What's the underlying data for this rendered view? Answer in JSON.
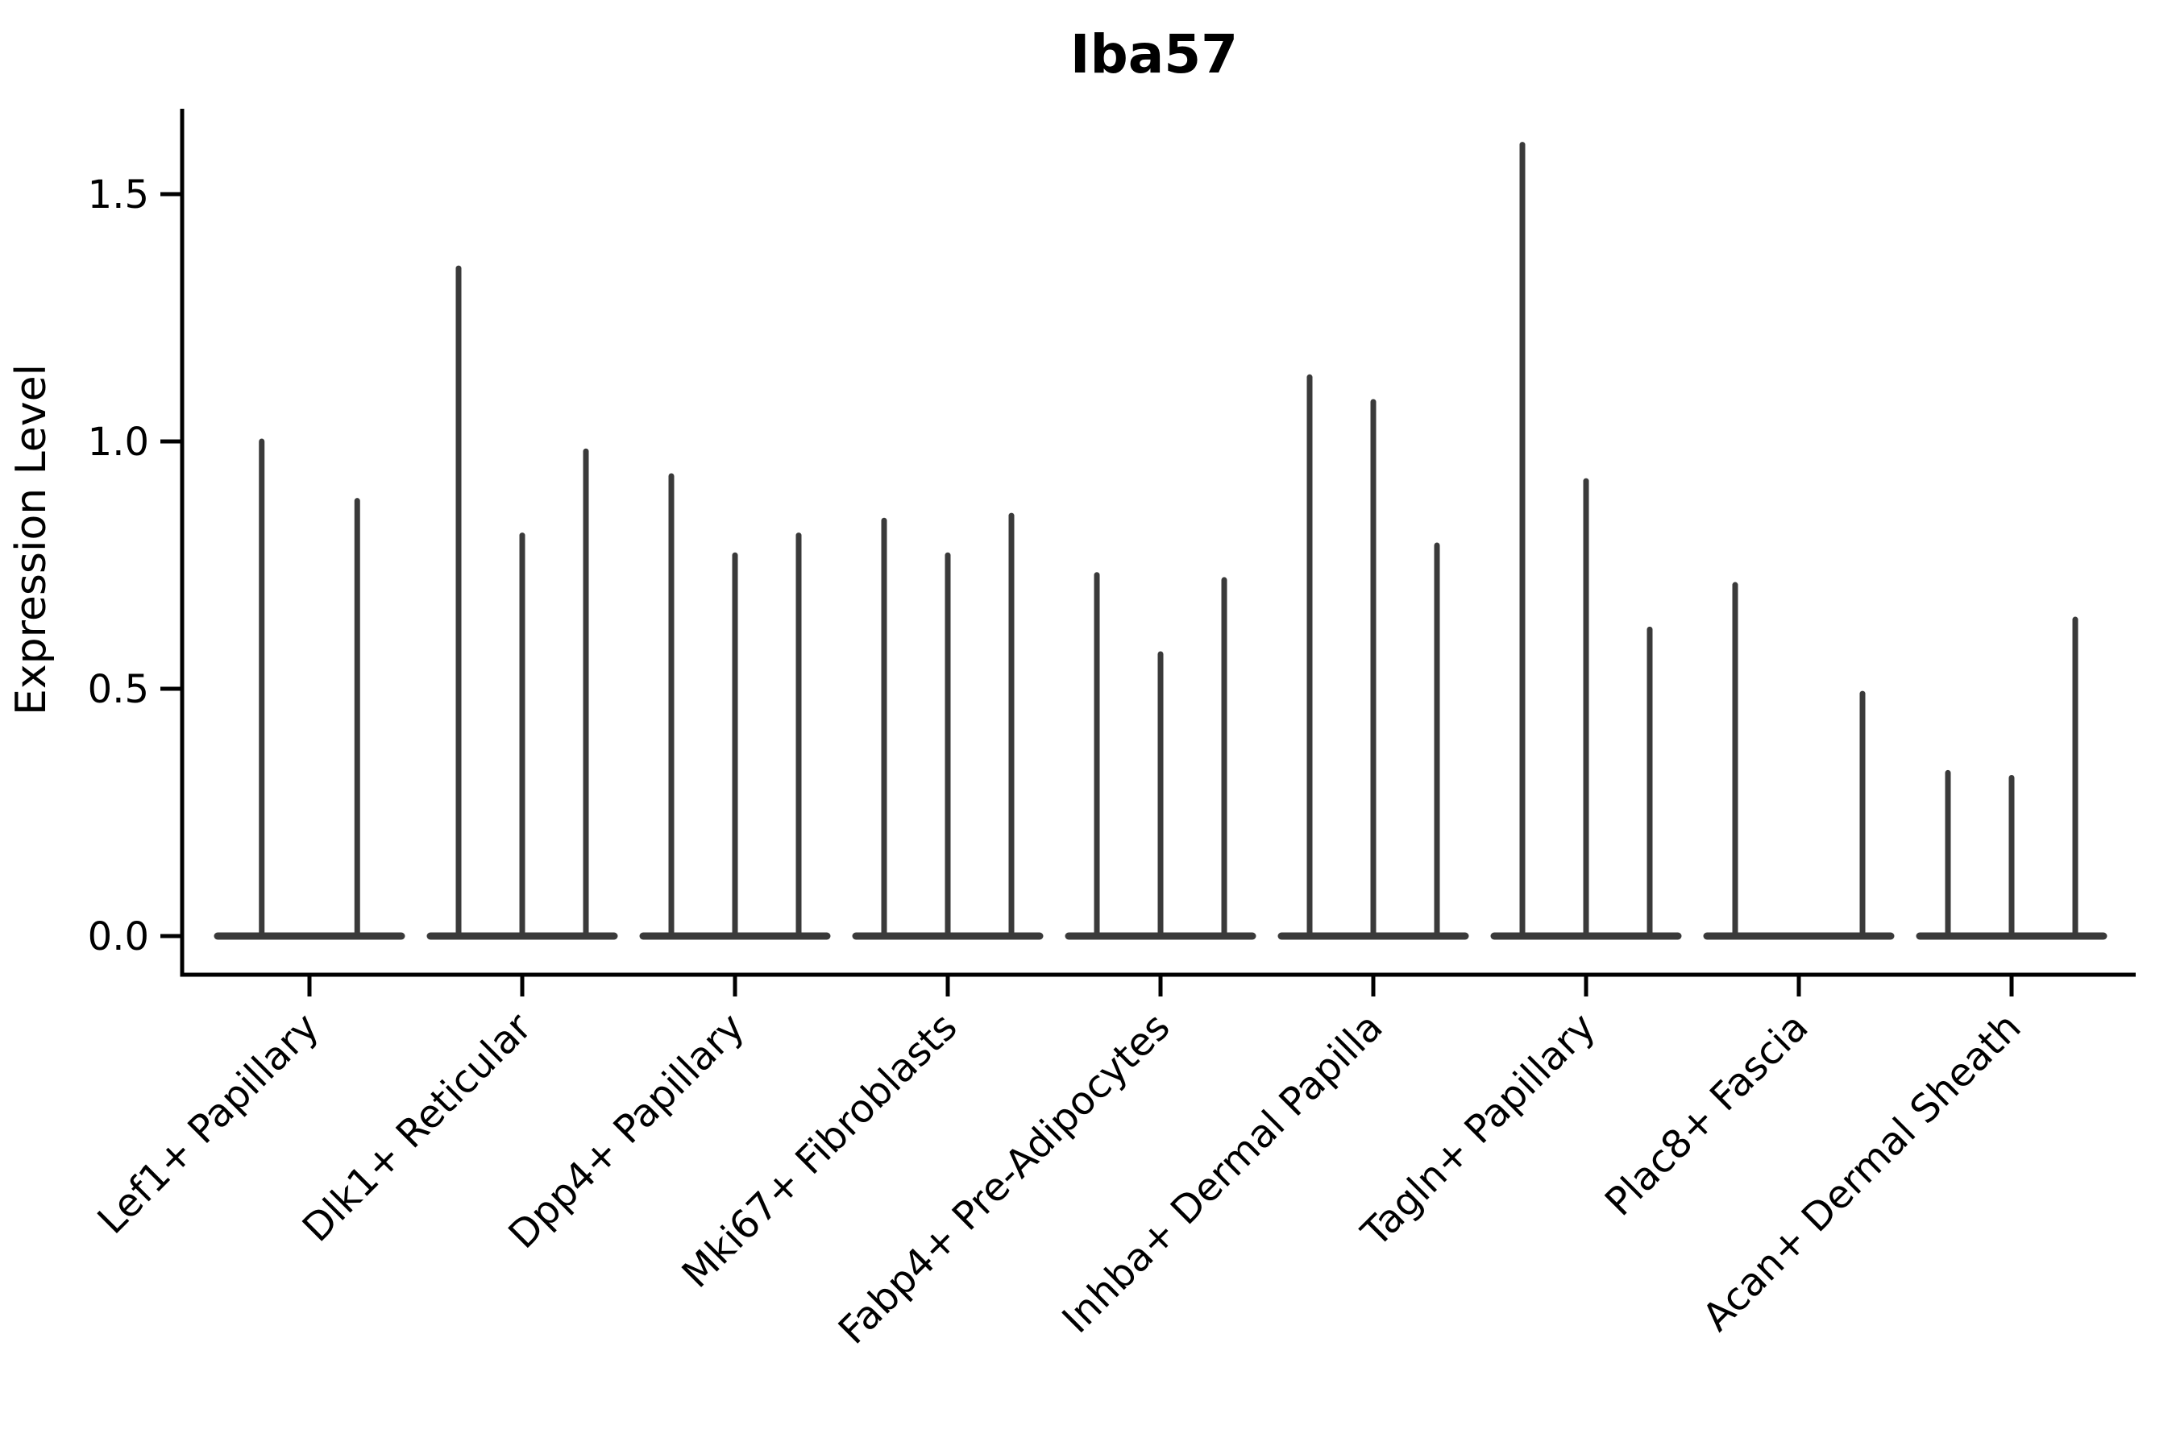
{
  "figure": {
    "title": "Iba57",
    "background_color": "#ffffff"
  },
  "chart_data": {
    "type": "violin",
    "title": "Iba57",
    "subtitle": "",
    "xlabel": "",
    "ylabel": "Expression Level",
    "grid": false,
    "legend_position": "none",
    "ylim": [
      -0.08,
      1.67
    ],
    "ytick_labels": [
      "0.0",
      "0.5",
      "1.0",
      "1.5"
    ],
    "ytick_values": [
      0.0,
      0.5,
      1.0,
      1.5
    ],
    "categories": [
      "Lef1+ Papillary",
      "Dlk1+ Reticular",
      "Dpp4+ Papillary",
      "Mki67+ Fibroblasts",
      "Fabp4+ Pre-Adipocytes",
      "Inhba+ Dermal Papilla",
      "Tagln+ Papillary",
      "Plac8+ Fascia",
      "Acan+ Dermal Sheath"
    ],
    "series": [
      {
        "category": "Lef1+ Papillary",
        "violin_peaks": [
          1.0,
          0.88
        ]
      },
      {
        "category": "Dlk1+ Reticular",
        "violin_peaks": [
          1.35,
          0.81,
          0.98
        ]
      },
      {
        "category": "Dpp4+ Papillary",
        "violin_peaks": [
          0.93,
          0.77,
          0.81
        ]
      },
      {
        "category": "Mki67+ Fibroblasts",
        "violin_peaks": [
          0.84,
          0.77,
          0.85
        ]
      },
      {
        "category": "Fabp4+ Pre-Adipocytes",
        "violin_peaks": [
          0.73,
          0.57,
          0.72
        ]
      },
      {
        "category": "Inhba+ Dermal Papilla",
        "violin_peaks": [
          1.13,
          1.08,
          0.79
        ]
      },
      {
        "category": "Tagln+ Papillary",
        "violin_peaks": [
          1.6,
          0.92,
          0.62
        ]
      },
      {
        "category": "Plac8+ Fascia",
        "violin_peaks": [
          0.71,
          0.0,
          0.49
        ]
      },
      {
        "category": "Acan+ Dermal Sheath",
        "violin_peaks": [
          0.33,
          0.32,
          0.64
        ]
      }
    ],
    "violins_are_zero_inflated_spikes": true,
    "colors": {
      "violin": "#3a3a3a",
      "axis": "#000000",
      "text": "#000000",
      "background": "#ffffff"
    }
  }
}
